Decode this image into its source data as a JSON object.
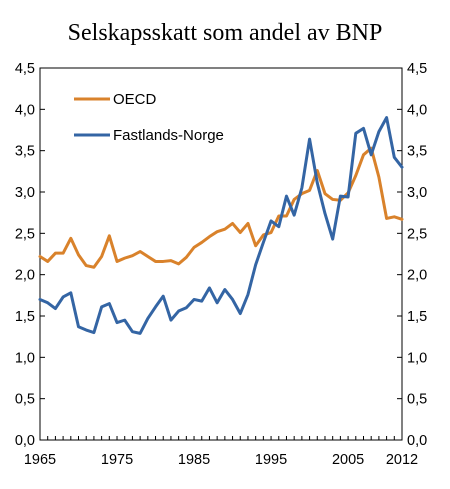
{
  "chart_data": {
    "type": "line",
    "title": "Selskapsskatt som andel av BNP",
    "xlabel": "",
    "ylabel": "",
    "xlim": [
      1965,
      2012
    ],
    "ylim": [
      0,
      4.5
    ],
    "y_ticks": [
      "0,0",
      "0,5",
      "1,0",
      "1,5",
      "2,0",
      "2,5",
      "3,0",
      "3,5",
      "4,0",
      "4,5"
    ],
    "x_tick_labels": [
      "1965",
      "1975",
      "1985",
      "1995",
      "2005",
      "2012"
    ],
    "x_tick_values": [
      1965,
      1975,
      1985,
      1995,
      2005,
      2012
    ],
    "grid": false,
    "legend_position": "top-left",
    "x": [
      1965,
      1966,
      1967,
      1968,
      1969,
      1970,
      1971,
      1972,
      1973,
      1974,
      1975,
      1976,
      1977,
      1978,
      1979,
      1980,
      1981,
      1982,
      1983,
      1984,
      1985,
      1986,
      1987,
      1988,
      1989,
      1990,
      1991,
      1992,
      1993,
      1994,
      1995,
      1996,
      1997,
      1998,
      1999,
      2000,
      2001,
      2002,
      2003,
      2004,
      2005,
      2006,
      2007,
      2008,
      2009,
      2010,
      2011,
      2012
    ],
    "series": [
      {
        "name": "OECD",
        "color": "#D9822B",
        "values": [
          2.22,
          2.16,
          2.26,
          2.26,
          2.44,
          2.24,
          2.11,
          2.09,
          2.22,
          2.47,
          2.16,
          2.2,
          2.23,
          2.28,
          2.22,
          2.16,
          2.16,
          2.17,
          2.13,
          2.21,
          2.33,
          2.39,
          2.46,
          2.52,
          2.55,
          2.62,
          2.51,
          2.62,
          2.35,
          2.48,
          2.51,
          2.71,
          2.71,
          2.91,
          2.98,
          3.02,
          3.26,
          2.98,
          2.91,
          2.9,
          2.99,
          3.2,
          3.45,
          3.53,
          3.18,
          2.68,
          2.7,
          2.67
        ]
      },
      {
        "name": "Fastlands-Norge",
        "color": "#3465A4",
        "values": [
          1.7,
          1.66,
          1.59,
          1.73,
          1.78,
          1.37,
          1.33,
          1.3,
          1.61,
          1.65,
          1.42,
          1.45,
          1.31,
          1.29,
          1.47,
          1.61,
          1.74,
          1.45,
          1.56,
          1.6,
          1.7,
          1.68,
          1.84,
          1.66,
          1.82,
          1.7,
          1.53,
          1.76,
          2.12,
          2.39,
          2.65,
          2.58,
          2.95,
          2.72,
          3.05,
          3.64,
          3.11,
          2.74,
          2.43,
          2.95,
          2.94,
          3.71,
          3.77,
          3.45,
          3.73,
          3.9,
          3.42,
          3.3
        ]
      }
    ]
  }
}
